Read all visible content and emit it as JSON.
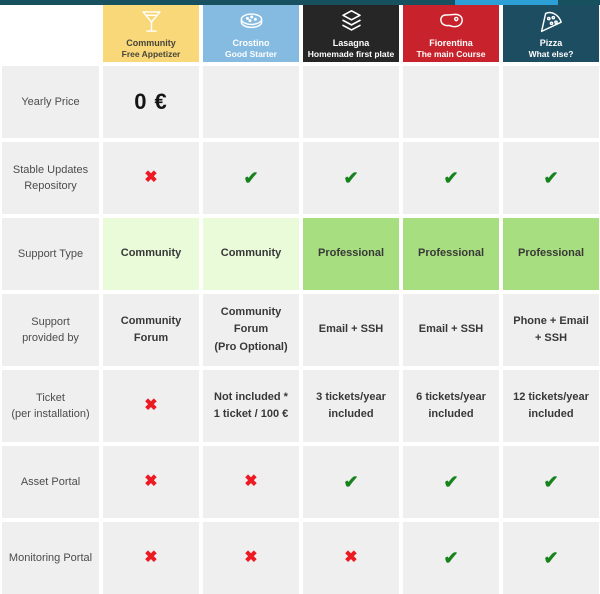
{
  "topbar": {
    "bar_color": "#17505f",
    "thumb_color": "#2b9fd6"
  },
  "colors": {
    "cell_bg": "#efefef",
    "check_green": "#17831c",
    "cross_red": "#ec1b23",
    "support_community_bg": "#e9fbd9",
    "support_professional_bg": "#a7de7f"
  },
  "symbols": {
    "check": "✔",
    "cross": "✖"
  },
  "table": {
    "plans": [
      {
        "name": "Community",
        "subtitle": "Free Appetizer",
        "bg": "#f8d878",
        "text": "#47453c",
        "icon": "cocktail-icon"
      },
      {
        "name": "Crostino",
        "subtitle": "Good Starter",
        "bg": "#85bbe0",
        "text": "#ffffff",
        "icon": "crostino-icon"
      },
      {
        "name": "Lasagna",
        "subtitle": "Homemade first plate",
        "bg": "#262626",
        "text": "#ffffff",
        "icon": "lasagna-icon"
      },
      {
        "name": "Fiorentina",
        "subtitle": "The main Course",
        "bg": "#c8232c",
        "text": "#ffffff",
        "icon": "steak-icon"
      },
      {
        "name": "Pizza",
        "subtitle": "What else?",
        "bg": "#1d4d61",
        "text": "#ffffff",
        "icon": "pizza-icon"
      }
    ],
    "rows": [
      {
        "label": [
          "Yearly Price"
        ],
        "cells": [
          {
            "type": "price",
            "text": "0 €"
          },
          {
            "type": "empty"
          },
          {
            "type": "empty"
          },
          {
            "type": "empty"
          },
          {
            "type": "empty"
          }
        ]
      },
      {
        "label": [
          "Stable Updates",
          "Repository"
        ],
        "cells": [
          {
            "type": "cross"
          },
          {
            "type": "check"
          },
          {
            "type": "check"
          },
          {
            "type": "check"
          },
          {
            "type": "check"
          }
        ]
      },
      {
        "label": [
          "Support Type"
        ],
        "cells": [
          {
            "type": "text",
            "lines": [
              "Community"
            ],
            "bg": "lightGreen"
          },
          {
            "type": "text",
            "lines": [
              "Community"
            ],
            "bg": "lightGreen"
          },
          {
            "type": "text",
            "lines": [
              "Professional"
            ],
            "bg": "green"
          },
          {
            "type": "text",
            "lines": [
              "Professional"
            ],
            "bg": "green"
          },
          {
            "type": "text",
            "lines": [
              "Professional"
            ],
            "bg": "green"
          }
        ]
      },
      {
        "label": [
          "Support",
          "provided by"
        ],
        "cells": [
          {
            "type": "text",
            "lines": [
              "Community Forum"
            ]
          },
          {
            "type": "text",
            "lines": [
              "Community Forum",
              "(Pro Optional)"
            ]
          },
          {
            "type": "text",
            "lines": [
              "Email + SSH"
            ]
          },
          {
            "type": "text",
            "lines": [
              "Email + SSH"
            ]
          },
          {
            "type": "text",
            "lines": [
              "Phone + Email",
              "+ SSH"
            ]
          }
        ]
      },
      {
        "label": [
          "Ticket",
          "(per installation)"
        ],
        "cells": [
          {
            "type": "cross"
          },
          {
            "type": "text",
            "lines": [
              "Not included *",
              "1 ticket / 100 €"
            ]
          },
          {
            "type": "text",
            "lines": [
              "3 tickets/year",
              "included"
            ]
          },
          {
            "type": "text",
            "lines": [
              "6 tickets/year",
              "included"
            ]
          },
          {
            "type": "text",
            "lines": [
              "12 tickets/year",
              "included"
            ]
          }
        ]
      },
      {
        "label": [
          "Asset Portal"
        ],
        "cells": [
          {
            "type": "cross"
          },
          {
            "type": "cross"
          },
          {
            "type": "check"
          },
          {
            "type": "check"
          },
          {
            "type": "check"
          }
        ]
      },
      {
        "label": [
          "Monitoring Portal"
        ],
        "cells": [
          {
            "type": "cross"
          },
          {
            "type": "cross"
          },
          {
            "type": "cross"
          },
          {
            "type": "check"
          },
          {
            "type": "check"
          }
        ]
      }
    ]
  }
}
